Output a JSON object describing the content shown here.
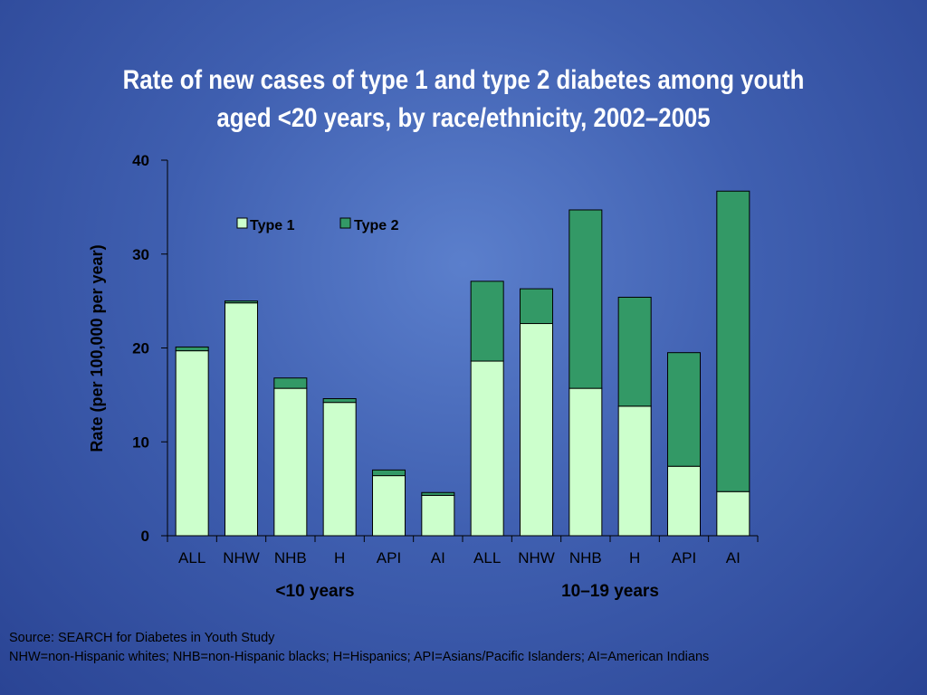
{
  "colors": {
    "background": "#4a6bbf",
    "title_text": "#ffffff",
    "type1_fill": "#ccffcc",
    "type2_fill": "#339966",
    "bar_stroke": "#000000"
  },
  "slide": {
    "title_line1": "Rate of new cases of type 1 and type 2 diabetes among youth",
    "title_line2": "aged <20 years, by race/ethnicity, 2002–2005"
  },
  "footnote": {
    "source": "Source: SEARCH for Diabetes in Youth Study",
    "abbreviations": "NHW=non-Hispanic whites; NHB=non-Hispanic blacks; H=Hispanics; API=Asians/Pacific Islanders; AI=American Indians"
  },
  "chart_data": {
    "type": "bar",
    "stacked": true,
    "categories": [
      "ALL",
      "NHW",
      "NHB",
      "H",
      "API",
      "AI",
      "ALL",
      "NHW",
      "NHB",
      "H",
      "API",
      "AI"
    ],
    "groups": [
      {
        "label": "<10 years",
        "categories": 6
      },
      {
        "label": "10–19 years",
        "categories": 6
      }
    ],
    "series": [
      {
        "name": "Type 1",
        "values": [
          19.7,
          24.8,
          15.7,
          14.2,
          6.4,
          4.3,
          18.6,
          22.6,
          15.7,
          13.8,
          7.4,
          4.7
        ]
      },
      {
        "name": "Type 2",
        "values": [
          0.4,
          0.2,
          1.1,
          0.4,
          0.6,
          0.3,
          8.5,
          3.7,
          19.0,
          11.6,
          12.1,
          32.0
        ]
      }
    ],
    "ylabel": "Rate (per 100,000 per year)",
    "xlabel": "",
    "ylim": [
      0,
      40
    ],
    "yticks": [
      "0",
      "10",
      "20",
      "30",
      "40"
    ],
    "grid": false,
    "legend_position": "top-left"
  }
}
